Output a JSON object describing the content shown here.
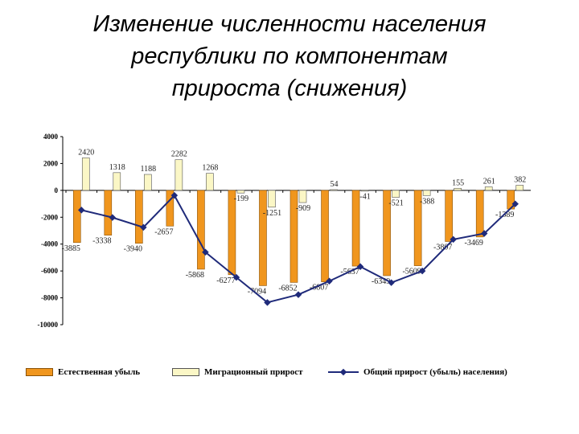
{
  "title_lines": [
    "Изменение численности населения",
    "республики по компонентам",
    "прироста (снижения)"
  ],
  "legend": {
    "natural": "Естественная убыль",
    "migration": "Миграционный прирост",
    "total": "Общий прирост (убыль) населения)"
  },
  "colors": {
    "natural": "#f0961e",
    "natural_stroke": "#8a5208",
    "migration": "#fbf7c6",
    "migration_stroke": "#555555",
    "total": "#1f2a7a"
  },
  "chart_data": {
    "type": "bar",
    "categories": [
      "",
      "",
      "",
      "",
      "",
      "",
      "",
      "",
      "",
      "",
      "",
      "",
      "",
      "",
      ""
    ],
    "ylim": [
      -10000,
      4000
    ],
    "yticks": [
      4000,
      2000,
      0,
      -2000,
      -4000,
      -6000,
      -8000,
      -10000
    ],
    "grid": false,
    "legend_position": "bottom",
    "series": [
      {
        "name": "Естественная убыль",
        "type": "bar",
        "values": [
          -3885,
          -3338,
          -3940,
          -2657,
          -5868,
          -6277,
          -7094,
          -6852,
          -6807,
          -5637,
          -6349,
          -5609,
          -3807,
          -3469,
          -1389
        ],
        "labels": [
          "-3885",
          "-3338",
          "-3940",
          "-2657",
          "-5868",
          "-6277",
          "-7094",
          "-6852",
          "-6807",
          "-5637",
          "-6349",
          "-5609",
          "-3807",
          "-3469",
          "-1389"
        ]
      },
      {
        "name": "Миграционный прирост",
        "type": "bar",
        "values": [
          2420,
          1318,
          1188,
          2282,
          1268,
          -199,
          -1251,
          -909,
          54,
          -41,
          -521,
          -388,
          155,
          261,
          382
        ],
        "labels": [
          "2420",
          "1318",
          "1188",
          "2282",
          "1268",
          "-199",
          "-1251",
          "-909",
          "54",
          "-41",
          "-521",
          "-388",
          "155",
          "261",
          "382"
        ]
      },
      {
        "name": "Общий прирост (убыль) населения)",
        "type": "line",
        "values": [
          -1465,
          -2020,
          -2752,
          -375,
          -4600,
          -6476,
          -8345,
          -7761,
          -6753,
          -5678,
          -6870,
          -5997,
          -3652,
          -3208,
          -1007
        ]
      }
    ]
  }
}
